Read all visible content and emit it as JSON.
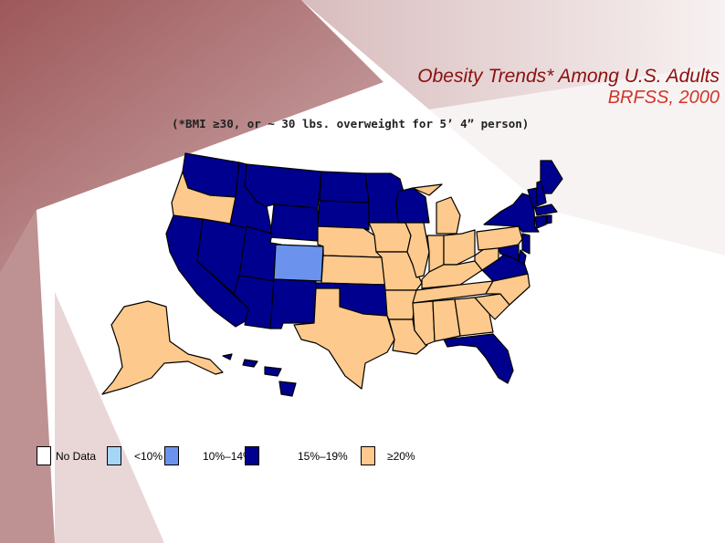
{
  "title": {
    "line1": "Obesity Trends* Among U.S. Adults",
    "line2": "BRFSS, 2000",
    "note": "(*BMI ≥30, or ~ 30 lbs. overweight for 5’ 4” person)"
  },
  "colors": {
    "no_data": "#ffffff",
    "lt10": "#a6d6f5",
    "c10_14": "#6b93ee",
    "c15_19": "#00008f",
    "ge20": "#fdc98c",
    "border": "#000000"
  },
  "legend": [
    {
      "key": "no_data",
      "label": "No Data"
    },
    {
      "key": "lt10",
      "label": "<10%"
    },
    {
      "key": "c10_14",
      "label": "10%–14%"
    },
    {
      "key": "c15_19",
      "label": "15%–19%"
    },
    {
      "key": "ge20",
      "label": "≥20%"
    }
  ],
  "states": {
    "WA": "c15_19",
    "OR": "ge20",
    "CA": "c15_19",
    "NV": "c15_19",
    "ID": "c15_19",
    "MT": "c15_19",
    "WY": "c15_19",
    "UT": "c15_19",
    "AZ": "c15_19",
    "CO": "c10_14",
    "NM": "c15_19",
    "ND": "c15_19",
    "SD": "c15_19",
    "NE": "ge20",
    "KS": "ge20",
    "OK": "c15_19",
    "TX": "ge20",
    "MN": "c15_19",
    "IA": "ge20",
    "MO": "ge20",
    "AR": "ge20",
    "LA": "ge20",
    "WI": "c15_19",
    "IL": "ge20",
    "MI": "ge20",
    "IN": "ge20",
    "OH": "ge20",
    "KY": "ge20",
    "TN": "ge20",
    "MS": "ge20",
    "AL": "ge20",
    "GA": "ge20",
    "FL": "c15_19",
    "SC": "ge20",
    "NC": "ge20",
    "VA": "c15_19",
    "WV": "ge20",
    "PA": "ge20",
    "NY": "c15_19",
    "VT": "c15_19",
    "NH": "c15_19",
    "ME": "c15_19",
    "MA": "c15_19",
    "CT": "c15_19",
    "RI": "c15_19",
    "NJ": "c15_19",
    "DE": "c15_19",
    "MD": "c15_19",
    "AK": "ge20",
    "HI": "c15_19"
  }
}
